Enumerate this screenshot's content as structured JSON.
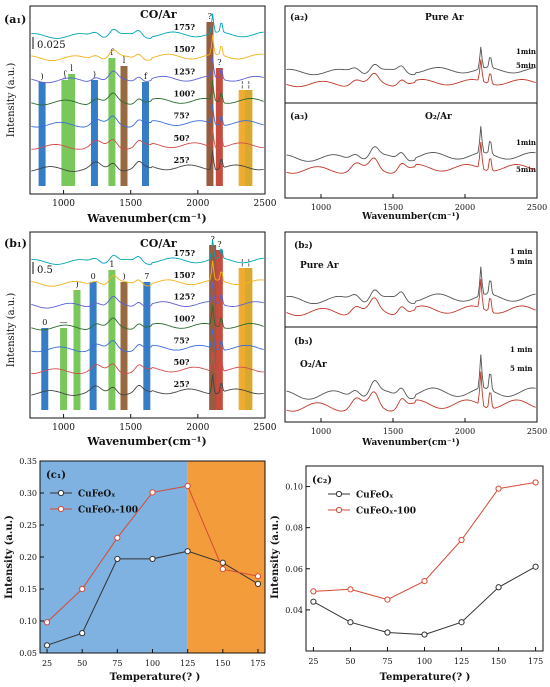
{
  "panels": {
    "a1": {
      "label": "(a₁)",
      "title": "CO/Ar",
      "scale": "0.025",
      "ylabel": "Intensity (a.u.)",
      "xlabel": "Wavenumber(cm⁻¹)",
      "temps": [
        "175?",
        "150?",
        "125?",
        "100?",
        "75?",
        "50?",
        "25?"
      ],
      "band_marks": [
        ")",
        "ʃ",
        "l",
        ")",
        "f",
        "l",
        "f",
        "?",
        "?",
        "¦",
        "¦"
      ]
    },
    "a2": {
      "label": "(a₂)",
      "title": "Pure Ar",
      "times": [
        "1min",
        "5min"
      ]
    },
    "a3": {
      "label": "(a₃)",
      "title": "O₂/Ar",
      "times": [
        "1min",
        "5min"
      ],
      "xlabel": "Wavenumber(cm⁻¹)"
    },
    "b1": {
      "label": "(b₁)",
      "title": "CO/Ar",
      "scale": "0.5",
      "ylabel": "Intensity (a.u.)",
      "xlabel": "Wavenumber(cm⁻¹)",
      "temps": [
        "175?",
        "150?",
        "125?",
        "100?",
        "75?",
        "50?",
        "25?"
      ],
      "band_marks": [
        "0",
        "—",
        ")",
        "0",
        "1",
        ")",
        "7",
        "?",
        "?",
        "¦",
        "¦"
      ]
    },
    "b2": {
      "label": "(b₂)",
      "title": "Pure Ar",
      "times": [
        "1 min",
        "5 min"
      ]
    },
    "b3": {
      "label": "(b₃)",
      "title": "O₂/Ar",
      "times": [
        "1 min",
        "5 min"
      ],
      "xlabel": "Wavenumber(cm⁻¹)"
    },
    "c1": {
      "label": "(c₁)"
    },
    "c2": {
      "label": "(c₂)"
    }
  },
  "spectra_axis": {
    "ticks": [
      "1000",
      "1500",
      "2000",
      "2500"
    ]
  },
  "chart_data": [
    {
      "type": "line",
      "id": "c1",
      "xlabel": "Temperature(?  )",
      "ylabel": "Intensity (a.u.)",
      "x": [
        25,
        50,
        75,
        100,
        125,
        150,
        175
      ],
      "xlim": [
        20,
        180
      ],
      "ylim": [
        0.05,
        0.35
      ],
      "xticks": [
        "25",
        "50",
        "75",
        "100",
        "125",
        "150",
        "175"
      ],
      "yticks": [
        "0.05",
        "0.10",
        "0.15",
        "0.20",
        "0.25",
        "0.30",
        "0.35"
      ],
      "shaded_regions": [
        {
          "from": 20,
          "to": 125,
          "color": "#7fb2e0"
        },
        {
          "from": 125,
          "to": 180,
          "color": "#f39c3c"
        }
      ],
      "legend": "top-left",
      "series": [
        {
          "name": "CuFeOₓ",
          "color": "#333333",
          "values": [
            0.062,
            0.081,
            0.197,
            0.197,
            0.209,
            0.191,
            0.158
          ]
        },
        {
          "name": "CuFeOₓ-100",
          "color": "#d64a36",
          "values": [
            0.098,
            0.15,
            0.23,
            0.301,
            0.311,
            0.181,
            0.17
          ]
        }
      ]
    },
    {
      "type": "line",
      "id": "c2",
      "xlabel": "Temperature(?  )",
      "ylabel": "Intensity (a.u.)",
      "x": [
        25,
        50,
        75,
        100,
        125,
        150,
        175
      ],
      "xlim": [
        20,
        180
      ],
      "ylim": [
        0.02,
        0.11
      ],
      "xticks": [
        "25",
        "50",
        "75",
        "100",
        "125",
        "150",
        "175"
      ],
      "yticks": [
        "0.04",
        "0.06",
        "0.08",
        "0.10"
      ],
      "legend": "top-left",
      "series": [
        {
          "name": "CuFeOₓ",
          "color": "#333333",
          "values": [
            0.044,
            0.034,
            0.029,
            0.028,
            0.034,
            0.051,
            0.061
          ]
        },
        {
          "name": "CuFeOₓ-100",
          "color": "#d64a36",
          "values": [
            0.049,
            0.05,
            0.045,
            0.054,
            0.074,
            0.099,
            0.102
          ]
        }
      ]
    }
  ]
}
